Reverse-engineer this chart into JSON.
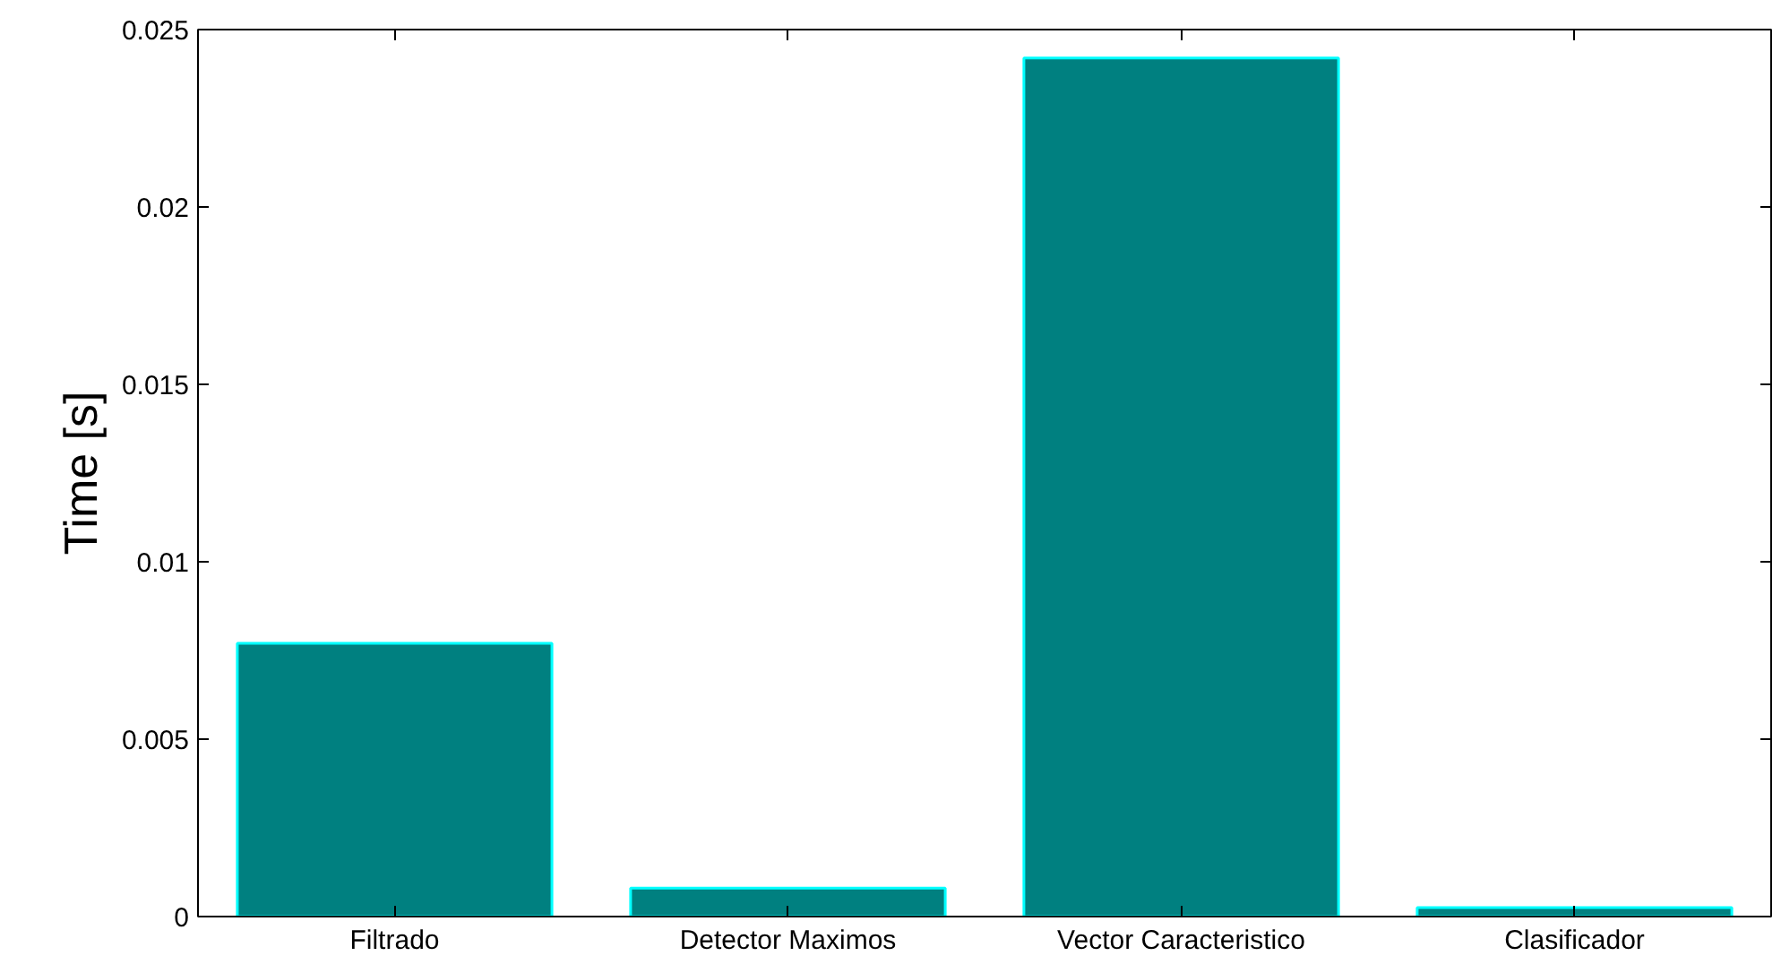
{
  "chart_data": {
    "type": "bar",
    "ylabel": "Time [s]",
    "categories": [
      "Filtrado",
      "Detector Maximos",
      "Vector Caracteristico",
      "Clasificador"
    ],
    "values": [
      0.0077,
      0.0008,
      0.0242,
      0.00025
    ],
    "color": "#008080",
    "ylim": [
      0,
      0.025
    ],
    "yticks": [
      0,
      0.005,
      0.01,
      0.015,
      0.02,
      0.025
    ],
    "grid": false
  }
}
